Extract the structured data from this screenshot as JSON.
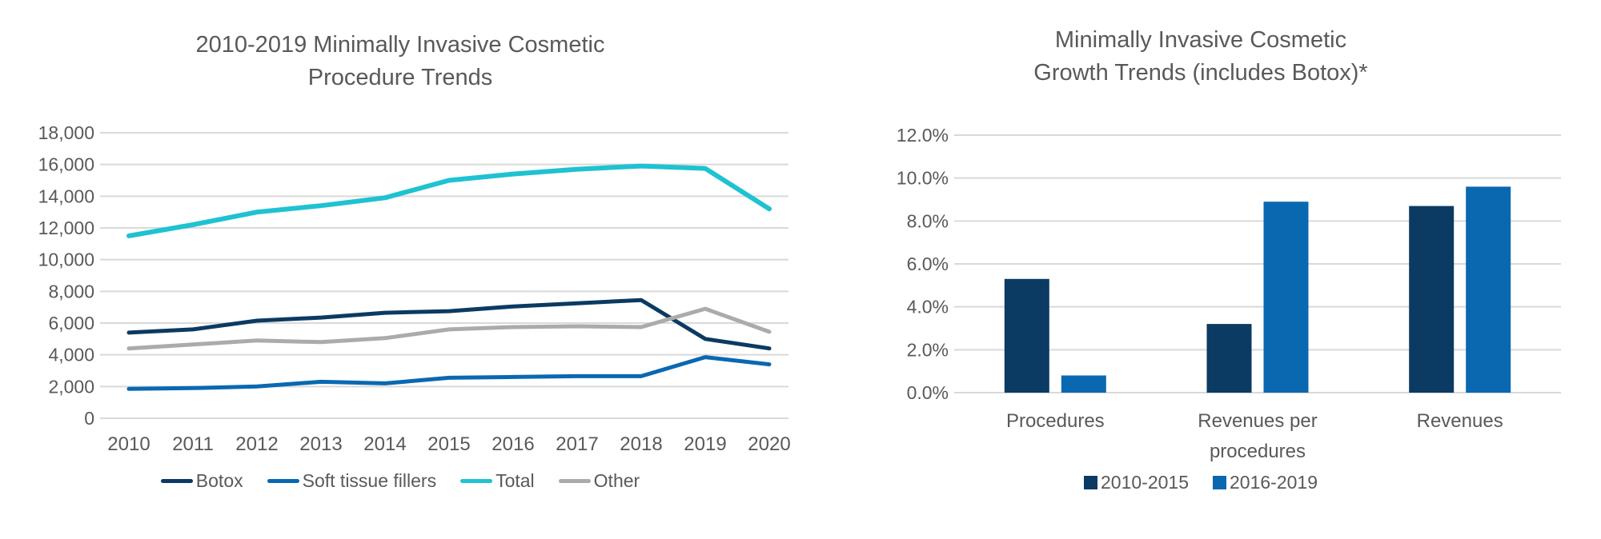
{
  "colors": {
    "navy": "#0B3A63",
    "blue": "#0A68B1",
    "teal": "#1FC2D1",
    "gray": "#ABABAB",
    "gridline": "#D9D9D9",
    "text": "#595959"
  },
  "chart_data": [
    {
      "type": "line",
      "title": "2010-2019 Minimally Invasive Cosmetic Procedure Trends",
      "title_lines": [
        "2010-2019 Minimally Invasive Cosmetic",
        "Procedure Trends"
      ],
      "x": [
        2010,
        2011,
        2012,
        2013,
        2014,
        2015,
        2016,
        2017,
        2018,
        2019,
        2020
      ],
      "series": [
        {
          "name": "Botox",
          "color_key": "navy",
          "values": [
            5400,
            5600,
            6150,
            6350,
            6650,
            6750,
            7050,
            7250,
            7450,
            5000,
            4400
          ]
        },
        {
          "name": "Soft tissue fillers",
          "color_key": "blue",
          "values": [
            1850,
            1900,
            2000,
            2300,
            2200,
            2550,
            2600,
            2650,
            2650,
            3850,
            3400
          ]
        },
        {
          "name": "Total",
          "color_key": "teal",
          "values": [
            11500,
            12200,
            13000,
            13400,
            13900,
            15000,
            15400,
            15700,
            15900,
            15750,
            13200
          ]
        },
        {
          "name": "Other",
          "color_key": "gray",
          "values": [
            4400,
            4650,
            4900,
            4800,
            5050,
            5600,
            5750,
            5800,
            5750,
            6900,
            5450
          ]
        }
      ],
      "ylim": [
        0,
        18000
      ],
      "ytick_step": 2000,
      "ytick_labels": [
        "0",
        "2,000",
        "4,000",
        "6,000",
        "8,000",
        "10,000",
        "12,000",
        "14,000",
        "16,000",
        "18,000"
      ],
      "grid": true,
      "legend_position": "bottom"
    },
    {
      "type": "bar",
      "title": "Minimally Invasive Cosmetic Growth Trends (includes Botox)*",
      "title_lines": [
        "Minimally Invasive Cosmetic",
        "Growth Trends (includes Botox)*"
      ],
      "categories": [
        "Procedures",
        "Revenues per procedures",
        "Revenues"
      ],
      "series": [
        {
          "name": "2010-2015",
          "color_key": "navy",
          "values": [
            5.3,
            3.2,
            8.7
          ]
        },
        {
          "name": "2016-2019",
          "color_key": "blue",
          "values": [
            0.8,
            8.9,
            9.6
          ]
        }
      ],
      "ylim": [
        0,
        12
      ],
      "ytick_step": 2,
      "ytick_labels": [
        "0.0%",
        "2.0%",
        "4.0%",
        "6.0%",
        "8.0%",
        "10.0%",
        "12.0%"
      ],
      "unit": "%",
      "grid": true,
      "legend_position": "bottom"
    }
  ]
}
